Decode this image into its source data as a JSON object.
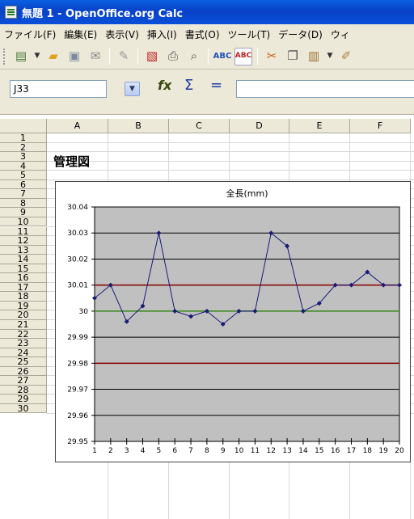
{
  "window": {
    "title": "無題 1 - OpenOffice.org Calc"
  },
  "menu": [
    "ファイル(F)",
    "編集(E)",
    "表示(V)",
    "挿入(I)",
    "書式(O)",
    "ツール(T)",
    "データ(D)",
    "ウィ"
  ],
  "toolbar": {
    "icons": [
      "new-document-icon",
      "open-folder-icon",
      "save-icon",
      "email-icon",
      "edit-file-icon",
      "export-pdf-icon",
      "print-icon",
      "page-preview-icon",
      "spellcheck-icon",
      "autospellcheck-icon",
      "cut-icon",
      "copy-icon",
      "paste-icon",
      "format-paintbrush-icon"
    ]
  },
  "formula": {
    "cell_ref": "J33",
    "fx": "fx",
    "sigma": "Σ",
    "equals": "=",
    "content": ""
  },
  "sheet": {
    "columns": [
      "A",
      "B",
      "C",
      "D",
      "E",
      "F"
    ],
    "rows": [
      "1",
      "2",
      "3",
      "4",
      "5",
      "6",
      "7",
      "8",
      "9",
      "10",
      "11",
      "12",
      "13",
      "14",
      "15",
      "16",
      "17",
      "18",
      "19",
      "20",
      "21",
      "22",
      "23",
      "24",
      "25",
      "26",
      "27",
      "28",
      "29",
      "30"
    ],
    "cell_A2": "管理図"
  },
  "colors": {
    "plot_bg": "#c0c0c0",
    "series": "#1a1a7a",
    "ucl": "#8b0000",
    "cl": "#3a8a1a",
    "lcl": "#8b0000"
  },
  "chart_data": {
    "type": "line",
    "title": "全長(mm)",
    "xlabel": "",
    "ylabel": "",
    "x": [
      1,
      2,
      3,
      4,
      5,
      6,
      7,
      8,
      9,
      10,
      11,
      12,
      13,
      14,
      15,
      16,
      17,
      18,
      19,
      20
    ],
    "series": [
      {
        "values": [
          30.005,
          30.01,
          29.996,
          30.002,
          30.03,
          30.0,
          29.998,
          30.0,
          29.995,
          30.0,
          30.0,
          30.03,
          30.025,
          30.0,
          30.003,
          30.01,
          30.01,
          30.015,
          30.01,
          30.01
        ]
      }
    ],
    "reference_lines": [
      30.01,
      30.0,
      29.98
    ],
    "yticks": [
      "29.95",
      "29.96",
      "29.97",
      "29.98",
      "29.99",
      "30",
      "30.01",
      "30.02",
      "30.03",
      "30.04"
    ],
    "ylim": [
      29.95,
      30.04
    ],
    "grid": true
  }
}
